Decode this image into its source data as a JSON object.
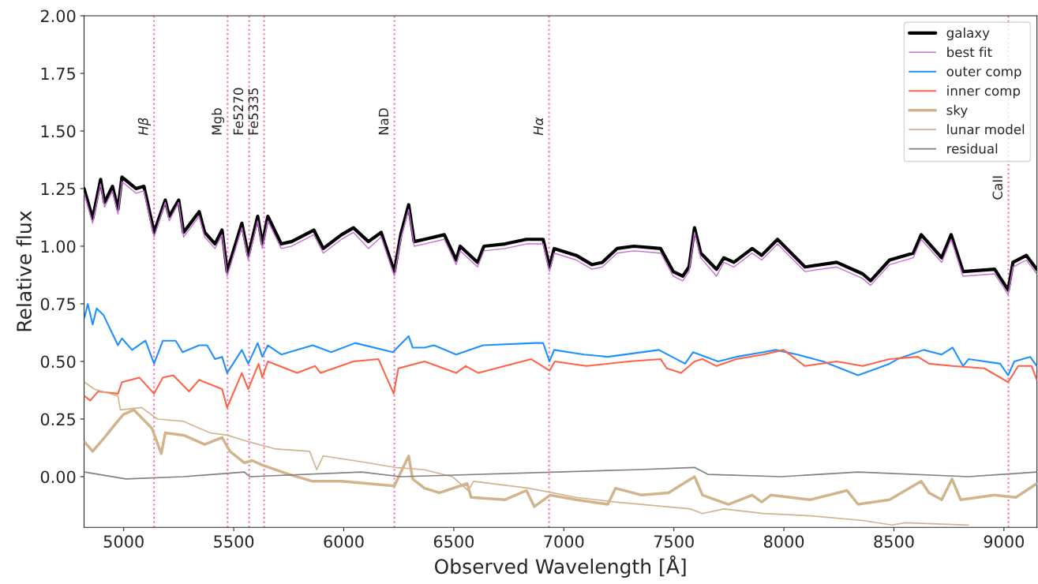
{
  "chart_data": {
    "type": "line",
    "xlabel": "Observed Wavelength [Å]",
    "ylabel": "Relative flux",
    "xlim": [
      4820,
      9150
    ],
    "ylim": [
      -0.22,
      2.0
    ],
    "xticks": [
      5000,
      5500,
      6000,
      6500,
      7000,
      7500,
      8000,
      8500,
      9000
    ],
    "yticks": [
      {
        "value": 0,
        "label": "0.00"
      },
      {
        "value": 0.25,
        "label": "0.25"
      },
      {
        "value": 0.5,
        "label": "0.50"
      },
      {
        "value": 0.75,
        "label": "0.75"
      },
      {
        "value": 1.0,
        "label": "1.00"
      },
      {
        "value": 1.25,
        "label": "1.25"
      },
      {
        "value": 1.5,
        "label": "1.50"
      },
      {
        "value": 1.75,
        "label": "1.75"
      },
      {
        "value": 2.0,
        "label": "2.00"
      }
    ],
    "grid": false,
    "legend": "top right",
    "marker": "none",
    "line_style": "solid",
    "series": [
      {
        "name": "galaxy",
        "color": "#000000",
        "x": [
          4820,
          4859,
          4895,
          4913,
          4949,
          4974,
          4992,
          5056,
          5092,
          5138,
          5189,
          5207,
          5250,
          5272,
          5343,
          5368,
          5415,
          5447,
          5470,
          5537,
          5566,
          5609,
          5630,
          5655,
          5716,
          5763,
          5864,
          5907,
          5990,
          6044,
          6112,
          6170,
          6230,
          6259,
          6295,
          6320,
          6367,
          6457,
          6511,
          6529,
          6608,
          6637,
          6733,
          6830,
          6906,
          6935,
          6956,
          7057,
          7128,
          7175,
          7242,
          7318,
          7440,
          7497,
          7540,
          7569,
          7594,
          7622,
          7694,
          7727,
          7773,
          7856,
          7899,
          7971,
          8096,
          8240,
          8358,
          8394,
          8480,
          8588,
          8624,
          8717,
          8760,
          8814,
          8958,
          9019,
          9041,
          9102,
          9149
        ],
        "values": [
          1.25,
          1.12,
          1.29,
          1.19,
          1.26,
          1.16,
          1.3,
          1.25,
          1.26,
          1.06,
          1.2,
          1.13,
          1.2,
          1.06,
          1.15,
          1.06,
          1.01,
          1.07,
          0.89,
          1.1,
          0.96,
          1.13,
          1.01,
          1.13,
          1.01,
          1.02,
          1.07,
          0.99,
          1.05,
          1.08,
          1.02,
          1.06,
          0.89,
          1.05,
          1.18,
          1.02,
          1.03,
          1.05,
          0.94,
          1.0,
          0.93,
          1.0,
          1.01,
          1.03,
          1.03,
          0.91,
          0.99,
          0.96,
          0.92,
          0.93,
          0.99,
          1.0,
          0.99,
          0.89,
          0.87,
          0.91,
          1.08,
          0.97,
          0.9,
          0.95,
          0.93,
          0.99,
          0.96,
          1.03,
          0.91,
          0.93,
          0.88,
          0.85,
          0.94,
          0.97,
          1.05,
          0.95,
          1.05,
          0.89,
          0.9,
          0.81,
          0.93,
          0.96,
          0.9
        ]
      },
      {
        "name": "best fit",
        "color": "#c86dd7",
        "x": [
          4820,
          4859,
          4895,
          4913,
          4949,
          4974,
          4992,
          5056,
          5092,
          5138,
          5189,
          5207,
          5250,
          5272,
          5343,
          5368,
          5415,
          5447,
          5470,
          5537,
          5566,
          5609,
          5630,
          5655,
          5716,
          5763,
          5864,
          5907,
          5990,
          6044,
          6112,
          6170,
          6230,
          6259,
          6295,
          6320,
          6367,
          6457,
          6511,
          6529,
          6608,
          6637,
          6733,
          6830,
          6906,
          6935,
          6956,
          7057,
          7128,
          7175,
          7242,
          7318,
          7440,
          7497,
          7540,
          7569,
          7594,
          7622,
          7694,
          7727,
          7773,
          7856,
          7899,
          7971,
          8096,
          8240,
          8358,
          8394,
          8480,
          8588,
          8624,
          8717,
          8760,
          8814,
          8958,
          9019,
          9041,
          9102,
          9149
        ],
        "values": [
          1.23,
          1.1,
          1.27,
          1.17,
          1.24,
          1.14,
          1.28,
          1.23,
          1.24,
          1.04,
          1.19,
          1.11,
          1.19,
          1.04,
          1.13,
          1.04,
          0.99,
          1.05,
          0.87,
          1.08,
          0.94,
          1.11,
          0.99,
          1.11,
          0.99,
          1.0,
          1.05,
          0.97,
          1.03,
          1.06,
          0.99,
          1.04,
          0.87,
          1.03,
          1.16,
          1.0,
          1.01,
          1.03,
          0.92,
          0.98,
          0.91,
          0.98,
          0.99,
          1.01,
          1.01,
          0.89,
          0.97,
          0.94,
          0.9,
          0.91,
          0.97,
          0.98,
          0.97,
          0.87,
          0.85,
          0.89,
          1.06,
          0.95,
          0.87,
          0.93,
          0.91,
          0.97,
          0.94,
          1.01,
          0.89,
          0.91,
          0.86,
          0.83,
          0.92,
          0.95,
          1.03,
          0.93,
          1.03,
          0.87,
          0.88,
          0.79,
          0.91,
          0.94,
          0.88
        ]
      },
      {
        "name": "outer comp",
        "color": "#1e90ff",
        "x": [
          4822,
          4837,
          4859,
          4877,
          4909,
          4949,
          4974,
          4992,
          5038,
          5099,
          5138,
          5178,
          5236,
          5268,
          5343,
          5379,
          5415,
          5447,
          5470,
          5537,
          5566,
          5609,
          5630,
          5655,
          5716,
          5859,
          5943,
          6052,
          6223,
          6295,
          6313,
          6367,
          6410,
          6511,
          6633,
          6869,
          6906,
          6935,
          6956,
          7092,
          7200,
          7432,
          7551,
          7587,
          7701,
          7784,
          7906,
          7963,
          8060,
          8178,
          8337,
          8394,
          8480,
          8516,
          8635,
          8717,
          8767,
          8814,
          8839,
          8983,
          9019,
          9047,
          9119,
          9149
        ],
        "values": [
          0.69,
          0.75,
          0.66,
          0.73,
          0.7,
          0.62,
          0.57,
          0.6,
          0.55,
          0.59,
          0.49,
          0.59,
          0.59,
          0.54,
          0.57,
          0.57,
          0.51,
          0.52,
          0.45,
          0.55,
          0.49,
          0.58,
          0.52,
          0.57,
          0.53,
          0.57,
          0.54,
          0.58,
          0.54,
          0.61,
          0.56,
          0.56,
          0.57,
          0.53,
          0.57,
          0.58,
          0.58,
          0.5,
          0.55,
          0.53,
          0.52,
          0.55,
          0.49,
          0.54,
          0.5,
          0.52,
          0.54,
          0.55,
          0.53,
          0.5,
          0.44,
          0.46,
          0.49,
          0.51,
          0.55,
          0.53,
          0.56,
          0.48,
          0.51,
          0.49,
          0.44,
          0.5,
          0.52,
          0.48
        ]
      },
      {
        "name": "inner comp",
        "color": "#ff6347",
        "x": [
          4822,
          4848,
          4884,
          4974,
          4992,
          5071,
          5138,
          5178,
          5225,
          5297,
          5343,
          5447,
          5470,
          5537,
          5566,
          5613,
          5630,
          5655,
          5788,
          5870,
          5895,
          6044,
          6158,
          6227,
          6248,
          6367,
          6511,
          6554,
          6612,
          6852,
          6935,
          6959,
          7103,
          7296,
          7440,
          7468,
          7533,
          7594,
          7630,
          7694,
          7784,
          7906,
          7999,
          8096,
          8240,
          8358,
          8480,
          8609,
          8660,
          8767,
          8911,
          9019,
          9065,
          9126,
          9149
        ],
        "values": [
          0.35,
          0.33,
          0.37,
          0.36,
          0.41,
          0.43,
          0.36,
          0.43,
          0.44,
          0.37,
          0.42,
          0.38,
          0.3,
          0.45,
          0.38,
          0.49,
          0.43,
          0.5,
          0.45,
          0.48,
          0.45,
          0.5,
          0.51,
          0.36,
          0.47,
          0.5,
          0.45,
          0.48,
          0.45,
          0.51,
          0.46,
          0.5,
          0.48,
          0.5,
          0.51,
          0.47,
          0.45,
          0.5,
          0.51,
          0.48,
          0.51,
          0.53,
          0.55,
          0.48,
          0.5,
          0.48,
          0.51,
          0.52,
          0.49,
          0.48,
          0.47,
          0.41,
          0.48,
          0.48,
          0.42
        ]
      },
      {
        "name": "sky",
        "color": "#d2b48c",
        "x": [
          4822,
          4859,
          4913,
          4963,
          4999,
          5046,
          5128,
          5171,
          5189,
          5272,
          5368,
          5447,
          5483,
          5548,
          5584,
          5630,
          5752,
          5859,
          5990,
          6112,
          6230,
          6295,
          6313,
          6367,
          6435,
          6561,
          6579,
          6733,
          6830,
          6866,
          6938,
          7057,
          7200,
          7235,
          7354,
          7475,
          7594,
          7630,
          7748,
          7856,
          7899,
          7941,
          8121,
          8287,
          8337,
          8480,
          8624,
          8660,
          8717,
          8764,
          8803,
          8958,
          9054,
          9149
        ],
        "values": [
          0.15,
          0.11,
          0.17,
          0.23,
          0.27,
          0.29,
          0.21,
          0.1,
          0.19,
          0.18,
          0.14,
          0.17,
          0.11,
          0.06,
          0.07,
          0.05,
          0.01,
          -0.02,
          -0.02,
          -0.03,
          -0.04,
          0.09,
          -0.01,
          -0.05,
          -0.07,
          -0.03,
          -0.09,
          -0.1,
          -0.06,
          -0.13,
          -0.08,
          -0.1,
          -0.12,
          -0.05,
          -0.08,
          -0.07,
          0.0,
          -0.08,
          -0.12,
          -0.08,
          -0.11,
          -0.08,
          -0.1,
          -0.06,
          -0.12,
          -0.1,
          -0.02,
          -0.07,
          -0.1,
          -0.01,
          -0.1,
          -0.08,
          -0.09,
          -0.03
        ]
      },
      {
        "name": "lunar model",
        "color": "#d2b48c",
        "x": [
          4822,
          4866,
          4974,
          4985,
          5081,
          5153,
          5272,
          5393,
          5470,
          5573,
          5691,
          5845,
          5877,
          5907,
          6112,
          6230,
          6367,
          6493,
          6565,
          6590,
          6841,
          7057,
          7235,
          7576,
          7587,
          7630,
          7727,
          7906,
          8121,
          8358,
          8491,
          8534,
          8552,
          8839
        ],
        "values": [
          0.41,
          0.38,
          0.35,
          0.29,
          0.3,
          0.25,
          0.24,
          0.19,
          0.18,
          0.15,
          0.12,
          0.11,
          0.03,
          0.09,
          0.06,
          0.04,
          0.03,
          0.0,
          -0.06,
          -0.02,
          -0.05,
          -0.09,
          -0.11,
          -0.14,
          null,
          -0.16,
          -0.14,
          -0.16,
          -0.17,
          -0.19,
          -0.21,
          null,
          -0.2,
          -0.21
        ]
      },
      {
        "name": "residual",
        "color": "#808080",
        "x": [
          4822,
          5010,
          5272,
          5548,
          5573,
          6081,
          6259,
          7318,
          7594,
          7655,
          7988,
          8337,
          8839,
          9149
        ],
        "values": [
          0.02,
          -0.01,
          0.0,
          0.02,
          0.0,
          0.02,
          0.0,
          0.03,
          0.04,
          0.01,
          0.0,
          0.02,
          0.0,
          0.02
        ]
      }
    ],
    "ref_lines": [
      {
        "axis": "x",
        "value": 5138,
        "label": "Hβ",
        "color": "#ff69b4",
        "line_style": "dotted"
      },
      {
        "axis": "x",
        "value": 5472,
        "label": "Mgb",
        "color": "#ff69b4",
        "line_style": "dotted"
      },
      {
        "axis": "x",
        "value": 5570,
        "label": "Fe5270",
        "color": "#ff69b4",
        "line_style": "dotted"
      },
      {
        "axis": "x",
        "value": 5638,
        "label": "Fe5335",
        "color": "#ff69b4",
        "line_style": "dotted"
      },
      {
        "axis": "x",
        "value": 6230,
        "label": "NaD",
        "color": "#ff69b4",
        "line_style": "dotted"
      },
      {
        "axis": "x",
        "value": 6933,
        "label": "Hα",
        "color": "#ff69b4",
        "line_style": "dotted"
      },
      {
        "axis": "x",
        "value": 9020,
        "label": "CaII",
        "color": "#ff69b4",
        "line_style": "dotted"
      }
    ]
  }
}
